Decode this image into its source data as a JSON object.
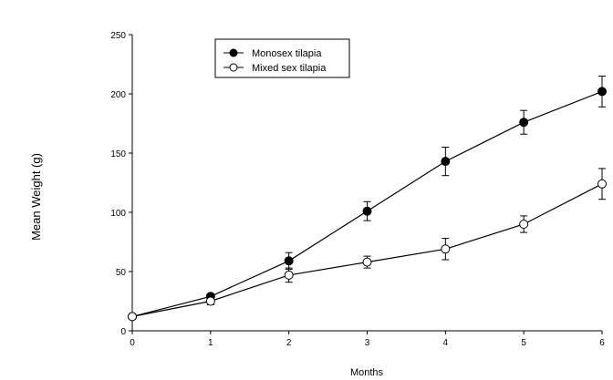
{
  "chart_data": {
    "type": "line",
    "title": "",
    "xlabel": "Months",
    "ylabel": "Mean Weight (g)",
    "x": [
      0,
      1,
      2,
      3,
      4,
      5,
      6
    ],
    "xlim": [
      0,
      6
    ],
    "ylim": [
      0,
      250
    ],
    "x_ticks": [
      "0",
      "1",
      "2",
      "3",
      "4",
      "5",
      "6"
    ],
    "y_ticks": [
      "0",
      "50",
      "100",
      "150",
      "200",
      "250"
    ],
    "grid": false,
    "legend_position": "top-center",
    "error_bars": true,
    "series": [
      {
        "name": "Monosex tilapia",
        "marker": "filled-circle",
        "color": "#000000",
        "values": [
          12,
          29,
          59,
          101,
          143,
          176,
          202
        ],
        "error": [
          0,
          2,
          7,
          8,
          12,
          10,
          13
        ]
      },
      {
        "name": "Mixed sex tilapia",
        "marker": "open-circle",
        "color": "#000000",
        "values": [
          12,
          25,
          47,
          58,
          69,
          90,
          124
        ],
        "error": [
          0,
          3,
          6,
          5,
          9,
          7,
          13
        ]
      }
    ]
  }
}
